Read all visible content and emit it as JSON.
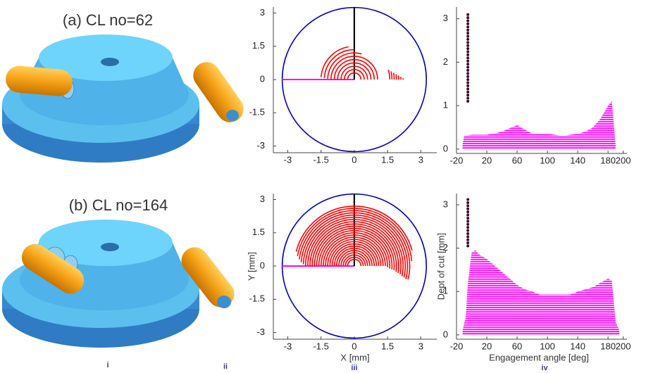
{
  "panels": [
    {
      "title": "(a) CL no=62"
    },
    {
      "title": "(b) CL no=164"
    }
  ],
  "subfigure_labels": [
    "i",
    "ii",
    "iii",
    "iv"
  ],
  "chart_data": [
    {
      "type": "engagement",
      "xlim": [
        -3.65,
        3.72
      ],
      "ylim": [
        -3.3,
        3.27
      ],
      "xticks": [
        -3,
        -1.5,
        0,
        1.5,
        3
      ],
      "yticks": [
        -3,
        -1.5,
        0,
        1.5,
        3
      ],
      "tool_radius": 3.25,
      "circle_color": "#0000c8",
      "feed_color": "#ff00ff",
      "axis_color": "#000000",
      "arc_color": "#ff0000",
      "arcs": {
        "radius": [
          0.3,
          0.45,
          0.6,
          0.75,
          0.9,
          1.05,
          1.2,
          1.35,
          1.5,
          1.6,
          1.7,
          1.8,
          1.9,
          2.0,
          2.1,
          2.2
        ],
        "start": [
          0,
          0,
          0,
          0,
          0,
          0,
          74,
          92,
          100,
          0,
          0,
          0,
          0,
          0,
          0,
          0
        ],
        "end": [
          180,
          180,
          180,
          180,
          180,
          180,
          178,
          177,
          176,
          16,
          12.5,
          9.7,
          7.2,
          5.1,
          3.2,
          1.6
        ]
      }
    },
    {
      "type": "depth",
      "xlim": [
        -20,
        205
      ],
      "ylim": [
        -0.1,
        3.27
      ],
      "xticks": [
        -20,
        20,
        60,
        100,
        140,
        180,
        200
      ],
      "yticks": [
        0,
        1,
        2,
        3
      ],
      "x": [
        -12,
        -10,
        0,
        10,
        20,
        30,
        40,
        50,
        60,
        70,
        80,
        90,
        100,
        110,
        120,
        130,
        140,
        150,
        160,
        170,
        175,
        180,
        185,
        188,
        190
      ],
      "values": [
        0.1,
        0.3,
        0.33,
        0.33,
        0.33,
        0.36,
        0.4,
        0.48,
        0.55,
        0.45,
        0.35,
        0.35,
        0.35,
        0.33,
        0.3,
        0.33,
        0.35,
        0.4,
        0.5,
        0.7,
        0.85,
        1.0,
        1.1,
        0.5,
        0.1
      ],
      "color": "#ff00ff",
      "dots": {
        "x": -5,
        "y": [
          1.1,
          3.15
        ]
      },
      "dot_color": "#3a0a2a"
    },
    {
      "type": "engagement",
      "xlabel": "X [mm]",
      "ylabel": "Y [mm]",
      "xlim": [
        -3.65,
        3.72
      ],
      "ylim": [
        -3.3,
        3.27
      ],
      "xticks": [
        -3,
        -1.5,
        0,
        1.5,
        3
      ],
      "yticks": [
        -3,
        -1.5,
        0,
        1.5,
        3
      ],
      "tool_radius": 3.25,
      "circle_color": "#0000c8",
      "feed_color": "#ff00ff",
      "axis_color": "#000000",
      "arc_color": "#ff0000",
      "arcs": {
        "radius": [
          0.3,
          0.4,
          0.5,
          0.6,
          0.7,
          0.8,
          0.9,
          1.0,
          1.1,
          1.2,
          1.3,
          1.4,
          1.5,
          1.6,
          1.7,
          1.8,
          1.9,
          2.0,
          2.1,
          2.2,
          2.3,
          2.4,
          2.5,
          2.6,
          2.7
        ],
        "start": [
          0,
          0,
          0,
          0,
          0,
          0,
          0,
          0,
          0,
          0,
          0,
          0,
          -2,
          -4,
          -5,
          -6,
          -8,
          -9,
          -10,
          -12,
          -13,
          -14,
          -14,
          5,
          15
        ],
        "end": [
          180,
          180,
          180,
          180,
          180,
          180,
          180,
          180,
          180,
          180,
          180,
          180,
          180,
          180,
          180,
          180,
          180,
          180,
          180,
          180,
          178,
          176,
          173,
          170,
          166
        ]
      }
    },
    {
      "type": "depth",
      "xlabel": "Engagement angle [deg]",
      "ylabel": "Dept of cut [mm]",
      "xlim": [
        -20,
        205
      ],
      "ylim": [
        -0.1,
        3.26
      ],
      "xticks": [
        -20,
        20,
        60,
        100,
        140,
        180,
        200
      ],
      "yticks": [
        0,
        1,
        2,
        3
      ],
      "x": [
        -12,
        -8,
        -5,
        0,
        5,
        10,
        20,
        30,
        40,
        50,
        60,
        70,
        80,
        90,
        100,
        110,
        120,
        130,
        140,
        150,
        160,
        170,
        180,
        185,
        190,
        195
      ],
      "values": [
        0.1,
        0.4,
        1.2,
        1.9,
        1.95,
        1.85,
        1.75,
        1.6,
        1.45,
        1.3,
        1.15,
        1.05,
        1.0,
        0.93,
        0.93,
        0.93,
        0.93,
        0.93,
        1.0,
        1.05,
        1.1,
        1.2,
        1.3,
        1.25,
        0.3,
        0.1
      ],
      "color": "#ff00ff",
      "dots": {
        "x": -5,
        "y": [
          2.05,
          3.15
        ]
      },
      "dot_color": "#3a0a2a"
    }
  ]
}
